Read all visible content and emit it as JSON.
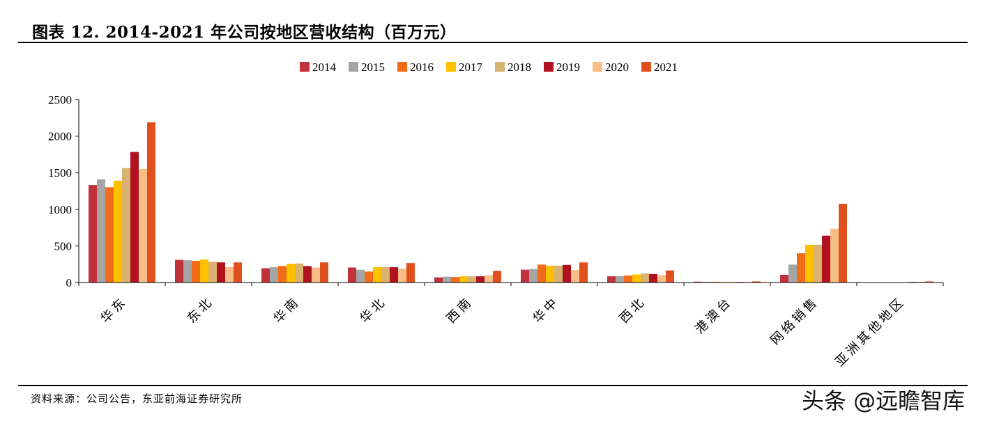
{
  "header": {
    "title": "图表 12. 2014-2021 年公司按地区营收结构（百万元）"
  },
  "footer": {
    "source": "资料来源：公司公告，东亚前海证券研究所"
  },
  "watermark": {
    "text": "头条 @远瞻智库"
  },
  "chart_data": {
    "type": "bar",
    "title": "",
    "xlabel": "",
    "ylabel": "",
    "ylim": [
      0,
      2500
    ],
    "yticks": [
      0,
      500,
      1000,
      1500,
      2000,
      2500
    ],
    "grid": false,
    "legend_position": "top",
    "categories": [
      "华东",
      "东北",
      "华南",
      "华北",
      "西南",
      "华中",
      "西北",
      "港澳台",
      "网络销售",
      "亚洲其他地区"
    ],
    "series": [
      {
        "name": "2014",
        "color": "#C0333B",
        "values": [
          1330,
          310,
          195,
          205,
          70,
          175,
          85,
          12,
          105,
          5
        ]
      },
      {
        "name": "2015",
        "color": "#A5A5A5",
        "values": [
          1410,
          305,
          210,
          175,
          80,
          185,
          90,
          10,
          245,
          5
        ]
      },
      {
        "name": "2016",
        "color": "#F26B18",
        "values": [
          1300,
          295,
          225,
          150,
          75,
          245,
          95,
          10,
          400,
          5
        ]
      },
      {
        "name": "2017",
        "color": "#FFC000",
        "values": [
          1390,
          315,
          255,
          210,
          85,
          230,
          110,
          8,
          515,
          5
        ]
      },
      {
        "name": "2018",
        "color": "#D8B26E",
        "values": [
          1565,
          285,
          260,
          210,
          85,
          230,
          125,
          8,
          515,
          5
        ]
      },
      {
        "name": "2019",
        "color": "#B0121F",
        "values": [
          1785,
          275,
          225,
          210,
          85,
          240,
          115,
          8,
          640,
          8
        ]
      },
      {
        "name": "2020",
        "color": "#F8BE87",
        "values": [
          1550,
          210,
          205,
          190,
          100,
          170,
          100,
          8,
          735,
          10
        ]
      },
      {
        "name": "2021",
        "color": "#E0501C",
        "values": [
          2190,
          275,
          275,
          265,
          160,
          275,
          165,
          15,
          1075,
          15
        ]
      }
    ]
  }
}
